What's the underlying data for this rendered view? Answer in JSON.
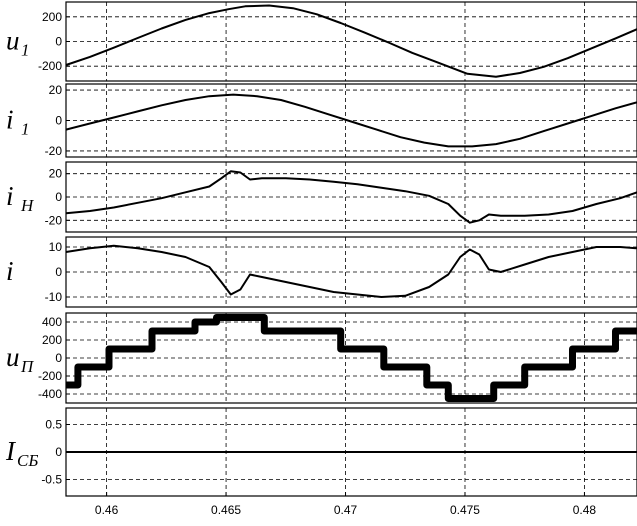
{
  "chart_data": {
    "type": "line",
    "grid": true,
    "xlim": [
      0.4583,
      0.4822
    ],
    "x_ticks": [
      "0.46",
      "0.465",
      "0.47",
      "0.475",
      "0.48"
    ],
    "x_tick_values": [
      0.46,
      0.465,
      0.47,
      0.475,
      0.48
    ],
    "panels": [
      {
        "ylabel": "u",
        "ylabel_sub": "1",
        "ylim": [
          -320,
          320
        ],
        "y_ticks": [
          "200",
          "0",
          "-200"
        ],
        "y_tick_values": [
          200,
          0,
          -200
        ],
        "series": [
          {
            "x": [
              0.4583,
              0.4593,
              0.4603,
              0.4613,
              0.4623,
              0.4633,
              0.4643,
              0.4651,
              0.4658,
              0.4668,
              0.4678,
              0.4688,
              0.4698,
              0.4708,
              0.4718,
              0.4728,
              0.4738,
              0.4751,
              0.4763,
              0.4773,
              0.4783,
              0.4793,
              0.4803,
              0.4813,
              0.4822
            ],
            "y": [
              -190,
              -125,
              -50,
              28,
              105,
              175,
              230,
              262,
              285,
              292,
              270,
              220,
              150,
              72,
              -8,
              -92,
              -165,
              -262,
              -285,
              -255,
              -205,
              -135,
              -55,
              25,
              100
            ]
          }
        ]
      },
      {
        "ylabel": "i",
        "ylabel_sub": "1",
        "ylim": [
          -24,
          24
        ],
        "y_ticks": [
          "20",
          "0",
          "-20"
        ],
        "y_tick_values": [
          20,
          0,
          -20
        ],
        "series": [
          {
            "x": [
              0.4583,
              0.4593,
              0.4603,
              0.4613,
              0.4623,
              0.4633,
              0.4643,
              0.4653,
              0.4663,
              0.4673,
              0.4683,
              0.4693,
              0.4703,
              0.4713,
              0.4723,
              0.4733,
              0.4743,
              0.4753,
              0.4763,
              0.4773,
              0.4783,
              0.4793,
              0.4803,
              0.4813,
              0.4822
            ],
            "y": [
              -6,
              -2,
              2,
              6,
              10,
              13.5,
              16,
              17,
              16,
              13.5,
              9,
              4,
              -1,
              -6,
              -11,
              -14.5,
              -17,
              -17,
              -15.5,
              -12,
              -7,
              -2,
              3,
              8,
              12
            ]
          }
        ]
      },
      {
        "ylabel": "i",
        "ylabel_sub": "H",
        "ylim": [
          -30,
          30
        ],
        "y_ticks": [
          "20",
          "0",
          "-20"
        ],
        "y_tick_values": [
          20,
          0,
          -20
        ],
        "series": [
          {
            "x": [
              0.4583,
              0.4593,
              0.4603,
              0.4613,
              0.4623,
              0.4633,
              0.4643,
              0.4648,
              0.4652,
              0.4656,
              0.466,
              0.4665,
              0.4675,
              0.4685,
              0.4695,
              0.4705,
              0.4715,
              0.4725,
              0.4735,
              0.4743,
              0.4748,
              0.4752,
              0.4756,
              0.476,
              0.4765,
              0.4775,
              0.4785,
              0.4795,
              0.4805,
              0.4815,
              0.4822
            ],
            "y": [
              -14,
              -12,
              -9,
              -5,
              -1,
              4,
              9,
              16,
              22,
              21,
              15,
              16,
              16,
              15,
              13,
              11,
              8,
              5,
              1,
              -6,
              -16,
              -22,
              -20,
              -15,
              -16,
              -16,
              -15,
              -12,
              -6,
              -1,
              4
            ]
          }
        ]
      },
      {
        "ylabel": "i",
        "ylabel_sub": "",
        "ylim": [
          -14,
          14
        ],
        "y_ticks": [
          "10",
          "0",
          "-10"
        ],
        "y_tick_values": [
          10,
          0,
          -10
        ],
        "series": [
          {
            "x": [
              0.4583,
              0.4593,
              0.4603,
              0.4613,
              0.4623,
              0.4633,
              0.4643,
              0.4648,
              0.4652,
              0.4656,
              0.466,
              0.4665,
              0.4675,
              0.4685,
              0.4695,
              0.4705,
              0.4715,
              0.4725,
              0.4735,
              0.4743,
              0.4748,
              0.4752,
              0.4756,
              0.476,
              0.4765,
              0.4775,
              0.4785,
              0.4795,
              0.4805,
              0.4815,
              0.4822
            ],
            "y": [
              8,
              9.5,
              10.5,
              9.5,
              8,
              6,
              2,
              -4,
              -9,
              -7,
              -1,
              -2,
              -4,
              -6,
              -8,
              -9,
              -10,
              -9.5,
              -6,
              -1,
              6,
              9,
              7,
              1,
              0,
              3,
              6,
              8,
              10,
              10,
              9.5
            ]
          }
        ]
      },
      {
        "ylabel": "u",
        "ylabel_sub": "П",
        "ylim": [
          -500,
          500
        ],
        "y_ticks": [
          "400",
          "200",
          "0",
          "-200",
          "-400"
        ],
        "y_tick_values": [
          400,
          200,
          0,
          -200,
          -400
        ],
        "series": [
          {
            "x": [
              0.4583,
              0.4588,
              0.4588,
              0.4601,
              0.4601,
              0.4619,
              0.4619,
              0.4637,
              0.4637,
              0.4646,
              0.4646,
              0.4666,
              0.4666,
              0.4698,
              0.4698,
              0.4716,
              0.4716,
              0.4734,
              0.4734,
              0.4743,
              0.4743,
              0.4762,
              0.4762,
              0.4775,
              0.4775,
              0.4795,
              0.4795,
              0.4813,
              0.4813,
              0.4822
            ],
            "y": [
              -300,
              -300,
              -100,
              -100,
              100,
              100,
              300,
              300,
              400,
              400,
              450,
              450,
              300,
              300,
              100,
              100,
              -100,
              -100,
              -300,
              -300,
              -450,
              -450,
              -300,
              -300,
              -100,
              -100,
              100,
              100,
              300,
              300
            ]
          }
        ]
      },
      {
        "ylabel": "I",
        "ylabel_sub": "СБ",
        "ylim": [
          -0.8,
          0.8
        ],
        "y_ticks": [
          "0.5",
          "0",
          "-0.5"
        ],
        "y_tick_values": [
          0.5,
          0,
          -0.5
        ],
        "series": [
          {
            "x": [
              0.4583,
              0.4822
            ],
            "y": [
              0,
              0
            ]
          }
        ]
      }
    ]
  }
}
